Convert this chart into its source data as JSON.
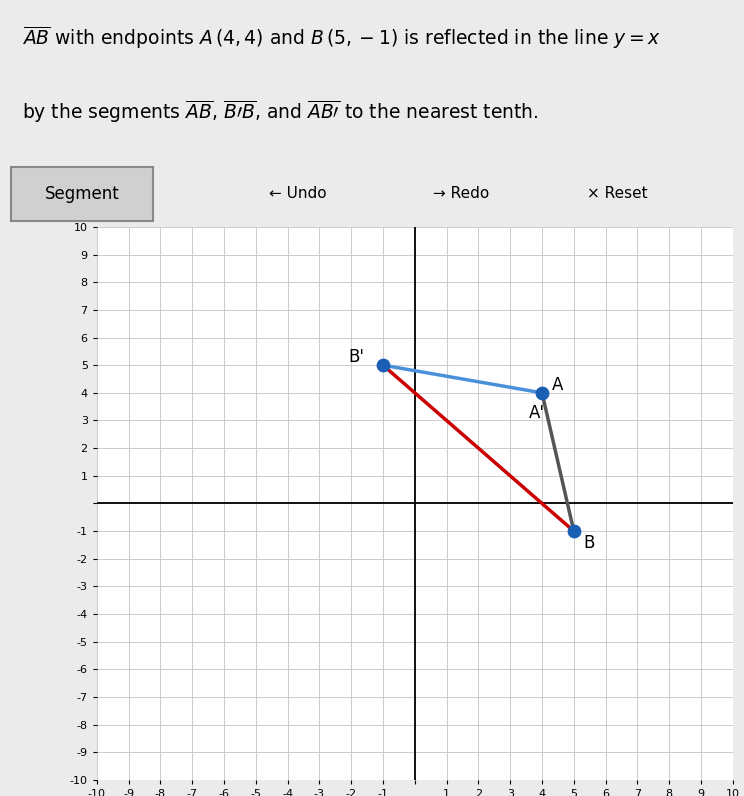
{
  "A": [
    4,
    4
  ],
  "B": [
    5,
    -1
  ],
  "A_prime": [
    4,
    4
  ],
  "B_prime": [
    -1,
    5
  ],
  "xlim": [
    -10,
    10
  ],
  "ylim": [
    -10,
    10
  ],
  "grid_color": "#cccccc",
  "background_color": "#ebebeb",
  "plot_background": "#ffffff",
  "segment_AB_color": "#555555",
  "segment_BpB_color": "#cc0000",
  "segment_BpA_color": "#4a90d9",
  "dot_color": "#1a5fb4",
  "dot_size": 80,
  "label_fontsize": 12,
  "toolbar_bg": "#d0d0d0",
  "undo_text": "← Undo",
  "redo_text": "→ Redo",
  "reset_text": "× Reset",
  "segment_button_text": "Segment",
  "left_panel_color": "#3d7fc4"
}
